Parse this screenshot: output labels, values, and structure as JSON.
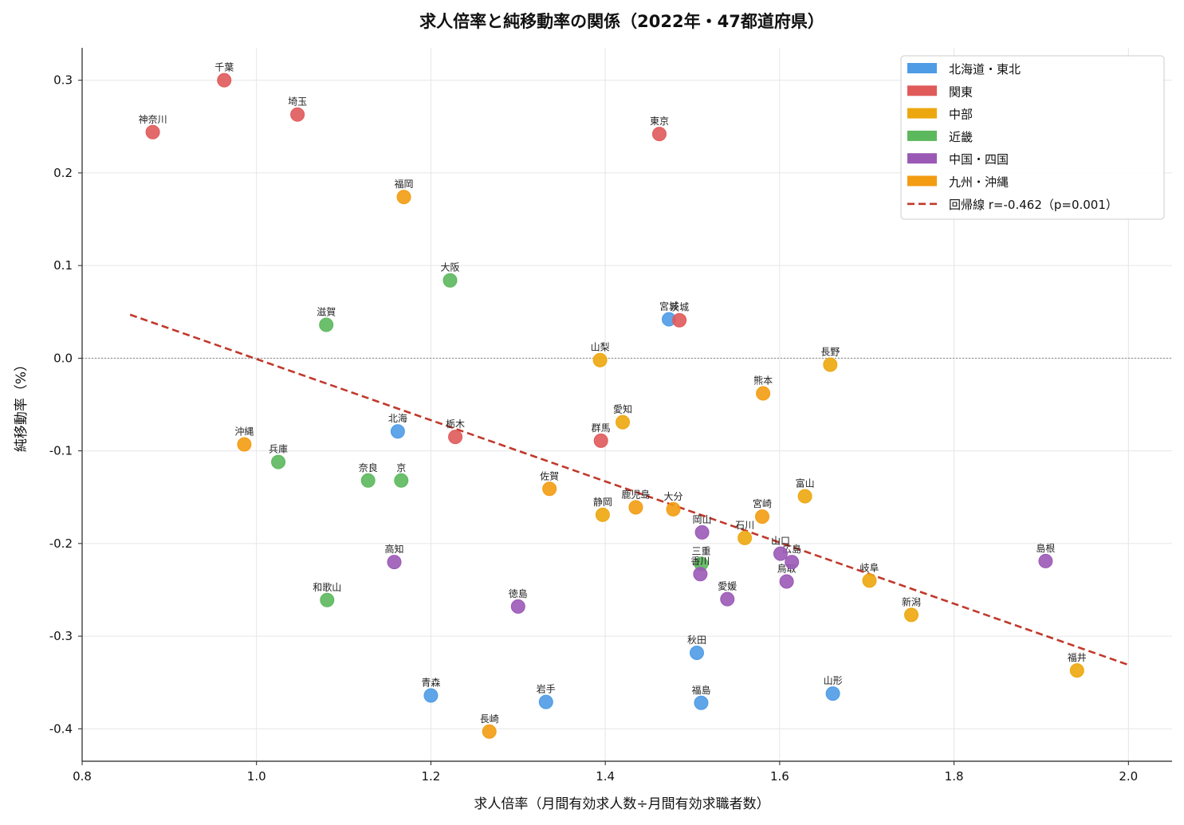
{
  "chart_data": {
    "type": "scatter",
    "title": "求人倍率と純移動率の関係（2022年・47都道府県）",
    "xlabel": "求人倍率（月間有効求人数÷月間有効求職者数）",
    "ylabel": "純移動率（%）",
    "xlim": [
      0.8,
      2.05
    ],
    "ylim": [
      -0.435,
      0.335
    ],
    "x_ticks": [
      0.8,
      1.0,
      1.2,
      1.4,
      1.6,
      1.8,
      2.0
    ],
    "x_tick_labels": [
      "0.8",
      "1.0",
      "1.2",
      "1.4",
      "1.6",
      "1.8",
      "2.0"
    ],
    "y_ticks": [
      0.3,
      0.2,
      0.1,
      0.0,
      -0.1,
      -0.2,
      -0.3,
      -0.4
    ],
    "y_tick_labels": [
      "0.3",
      "0.2",
      "0.1",
      "0.0",
      "-0.1",
      "-0.2",
      "-0.3",
      "-0.4"
    ],
    "grid": true,
    "zero_line": true,
    "legend_position": "top-right",
    "series": [
      {
        "name": "北海道・東北",
        "color": "#4e9be6",
        "points": [
          {
            "label": "北海道",
            "display_label": "北海",
            "x": 1.162,
            "y": -0.079
          },
          {
            "label": "青森",
            "x": 1.2,
            "y": -0.364
          },
          {
            "label": "岩手",
            "x": 1.332,
            "y": -0.371
          },
          {
            "label": "宮城",
            "x": 1.473,
            "y": 0.042
          },
          {
            "label": "秋田",
            "x": 1.505,
            "y": -0.318
          },
          {
            "label": "山形",
            "x": 1.661,
            "y": -0.362
          },
          {
            "label": "福島",
            "x": 1.51,
            "y": -0.372
          }
        ]
      },
      {
        "name": "関東",
        "color": "#e05a5a",
        "points": [
          {
            "label": "茨城",
            "x": 1.485,
            "y": 0.041
          },
          {
            "label": "栃木",
            "x": 1.228,
            "y": -0.085
          },
          {
            "label": "群馬",
            "x": 1.395,
            "y": -0.089
          },
          {
            "label": "埼玉",
            "x": 1.047,
            "y": 0.263
          },
          {
            "label": "千葉",
            "x": 0.963,
            "y": 0.3
          },
          {
            "label": "東京",
            "x": 1.462,
            "y": 0.242
          },
          {
            "label": "神奈川",
            "x": 0.881,
            "y": 0.244
          }
        ]
      },
      {
        "name": "中部",
        "color": "#eda70e",
        "points": [
          {
            "label": "新潟",
            "x": 1.751,
            "y": -0.277
          },
          {
            "label": "富山",
            "x": 1.629,
            "y": -0.149
          },
          {
            "label": "石川",
            "x": 1.56,
            "y": -0.194
          },
          {
            "label": "福井",
            "x": 1.941,
            "y": -0.337
          },
          {
            "label": "山梨",
            "x": 1.394,
            "y": -0.002
          },
          {
            "label": "長野",
            "x": 1.658,
            "y": -0.007
          },
          {
            "label": "岐阜",
            "x": 1.703,
            "y": -0.24
          },
          {
            "label": "静岡",
            "x": 1.397,
            "y": -0.169
          },
          {
            "label": "愛知",
            "x": 1.42,
            "y": -0.069
          }
        ]
      },
      {
        "name": "近畿",
        "color": "#5cb85c",
        "points": [
          {
            "label": "三重",
            "x": 1.51,
            "y": -0.222
          },
          {
            "label": "滋賀",
            "x": 1.08,
            "y": 0.036
          },
          {
            "label": "京都",
            "display_label": "京",
            "x": 1.166,
            "y": -0.132
          },
          {
            "label": "大阪",
            "x": 1.222,
            "y": 0.084
          },
          {
            "label": "兵庫",
            "x": 1.025,
            "y": -0.112
          },
          {
            "label": "奈良",
            "x": 1.128,
            "y": -0.132
          },
          {
            "label": "和歌山",
            "x": 1.081,
            "y": -0.261
          }
        ]
      },
      {
        "name": "中国・四国",
        "color": "#9b59b6",
        "points": [
          {
            "label": "鳥取",
            "x": 1.608,
            "y": -0.241
          },
          {
            "label": "島根",
            "x": 1.905,
            "y": -0.219
          },
          {
            "label": "岡山",
            "x": 1.511,
            "y": -0.188
          },
          {
            "label": "広島",
            "x": 1.614,
            "y": -0.22
          },
          {
            "label": "山口",
            "x": 1.601,
            "y": -0.211
          },
          {
            "label": "徳島",
            "x": 1.3,
            "y": -0.268
          },
          {
            "label": "香川",
            "x": 1.509,
            "y": -0.233
          },
          {
            "label": "愛媛",
            "x": 1.54,
            "y": -0.26
          },
          {
            "label": "高知",
            "x": 1.158,
            "y": -0.22
          }
        ]
      },
      {
        "name": "九州・沖縄",
        "color": "#f39c12",
        "points": [
          {
            "label": "福岡",
            "x": 1.169,
            "y": 0.174
          },
          {
            "label": "佐賀",
            "x": 1.336,
            "y": -0.141
          },
          {
            "label": "長崎",
            "x": 1.267,
            "y": -0.403
          },
          {
            "label": "熊本",
            "x": 1.581,
            "y": -0.038
          },
          {
            "label": "大分",
            "x": 1.478,
            "y": -0.163
          },
          {
            "label": "宮崎",
            "x": 1.58,
            "y": -0.171
          },
          {
            "label": "鹿児島",
            "x": 1.435,
            "y": -0.161
          },
          {
            "label": "沖縄",
            "x": 0.986,
            "y": -0.093
          }
        ]
      }
    ],
    "regression": {
      "label": "回帰線 r=-0.462（p=0.001）",
      "color": "#c0392b",
      "x": [
        0.855,
        2.0
      ],
      "y": [
        0.047,
        -0.331
      ]
    }
  }
}
